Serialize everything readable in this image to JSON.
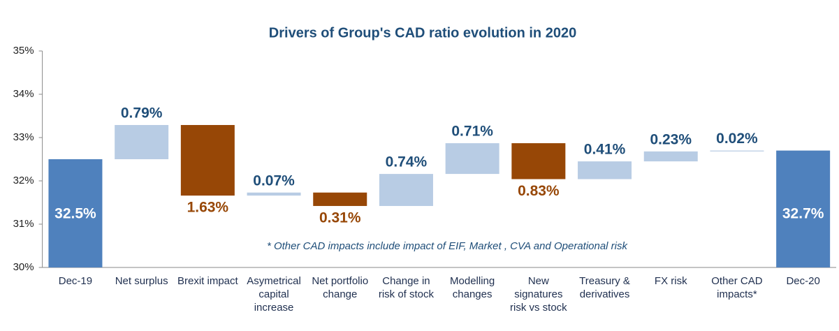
{
  "chart_data": {
    "type": "waterfall",
    "title": "Drivers of Group's CAD ratio evolution in 2020",
    "categories": [
      "Dec-19",
      "Net surplus",
      "Brexit impact",
      "Asymetrical capital increase",
      "Net portfolio change",
      "Change in risk of stock",
      "Modelling changes",
      "New signatures risk vs stock",
      "Treasury & derivatives",
      "FX risk",
      "Other CAD impacts*",
      "Dec-20"
    ],
    "values": [
      32.5,
      0.79,
      -1.63,
      0.07,
      -0.31,
      0.74,
      0.71,
      -0.83,
      0.41,
      0.23,
      0.02,
      32.7
    ],
    "value_labels": [
      "32.5%",
      "0.79%",
      "1.63%",
      "0.07%",
      "0.31%",
      "0.74%",
      "0.71%",
      "0.83%",
      "0.41%",
      "0.23%",
      "0.02%",
      "32.7%"
    ],
    "total_color": "#4f81bd",
    "increase_color": "#b8cce4",
    "decrease_color": "#974706",
    "ylim": [
      30,
      35
    ],
    "yticks": [
      {
        "value": 30,
        "label": "30%"
      },
      {
        "value": 31,
        "label": "31%"
      },
      {
        "value": 32,
        "label": "32%"
      },
      {
        "value": 33,
        "label": "33%"
      },
      {
        "value": 34,
        "label": "34%"
      },
      {
        "value": 35,
        "label": "35%"
      }
    ],
    "annotation": "* Other CAD impacts include impact of  EIF, Market , CVA and Operational risk"
  }
}
